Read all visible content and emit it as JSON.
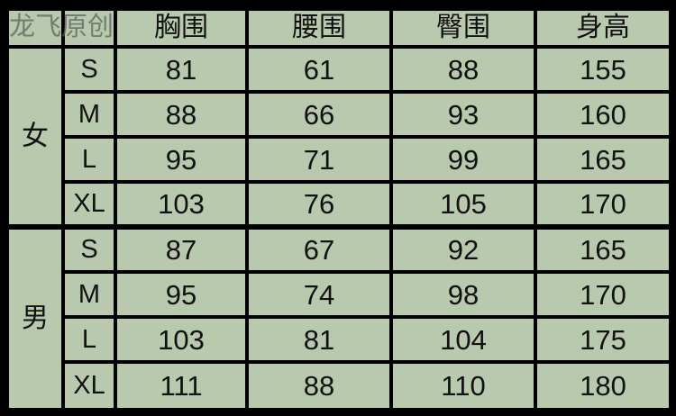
{
  "header": {
    "columns": [
      "",
      "",
      "胸围",
      "腰围",
      "臀围",
      "身高"
    ]
  },
  "groups": [
    {
      "gender": "女",
      "rows": [
        {
          "size": "S",
          "chest": "81",
          "waist": "61",
          "hip": "88",
          "height": "155"
        },
        {
          "size": "M",
          "chest": "88",
          "waist": "66",
          "hip": "93",
          "height": "160"
        },
        {
          "size": "L",
          "chest": "95",
          "waist": "71",
          "hip": "99",
          "height": "165"
        },
        {
          "size": "XL",
          "chest": "103",
          "waist": "76",
          "hip": "105",
          "height": "170"
        }
      ]
    },
    {
      "gender": "男",
      "rows": [
        {
          "size": "S",
          "chest": "87",
          "waist": "67",
          "hip": "92",
          "height": "165"
        },
        {
          "size": "M",
          "chest": "95",
          "waist": "74",
          "hip": "98",
          "height": "170"
        },
        {
          "size": "L",
          "chest": "103",
          "waist": "81",
          "hip": "104",
          "height": "175"
        },
        {
          "size": "XL",
          "chest": "111",
          "waist": "88",
          "hip": "110",
          "height": "180"
        }
      ]
    }
  ],
  "watermark": "龙飞原创",
  "colors": {
    "cell": "#b8c9ae",
    "border": "#000000"
  }
}
